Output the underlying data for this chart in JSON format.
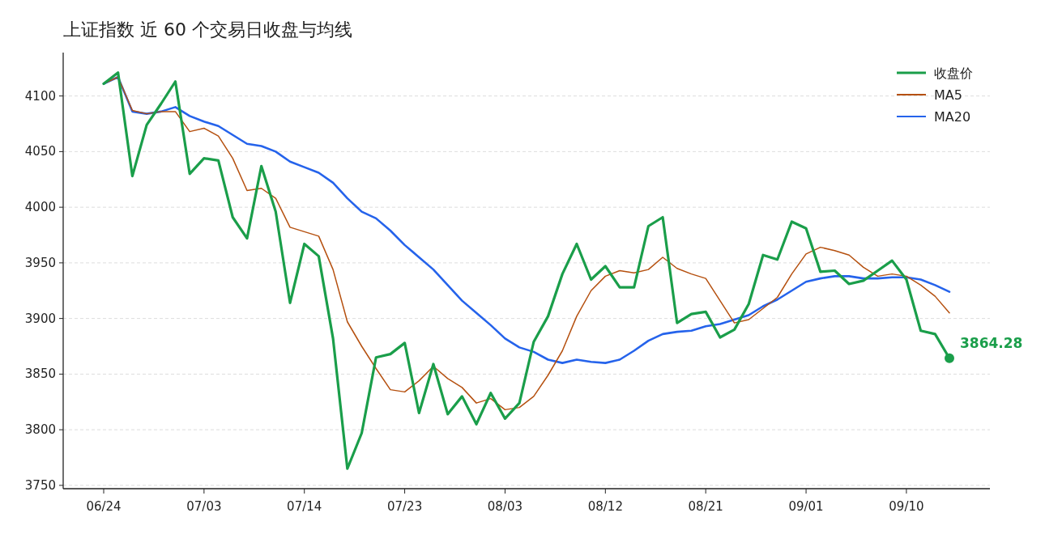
{
  "chart_data": {
    "type": "line",
    "title": "上证指数 近 60 个交易日收盘与均线",
    "categories": [
      "06/24",
      null,
      null,
      null,
      null,
      null,
      null,
      "07/03",
      null,
      null,
      null,
      null,
      null,
      null,
      "07/14",
      null,
      null,
      null,
      null,
      null,
      null,
      "07/23",
      null,
      null,
      null,
      null,
      null,
      null,
      "08/03",
      null,
      null,
      null,
      null,
      null,
      null,
      "08/12",
      null,
      null,
      null,
      null,
      null,
      null,
      "08/21",
      null,
      null,
      null,
      null,
      null,
      null,
      "09/01",
      null,
      null,
      null,
      null,
      null,
      null,
      "09/10",
      null,
      null,
      null
    ],
    "series": [
      {
        "name": "收盘价",
        "color": "#1a9e4a",
        "values": [
          4111,
          4121,
          4028,
          4074,
          4093,
          4113,
          4030,
          4044,
          4042,
          3991,
          3972,
          4037,
          3996,
          3914,
          3967,
          3956,
          3882,
          3765,
          3797,
          3865,
          3868,
          3878,
          3815,
          3859,
          3814,
          3830,
          3805,
          3833,
          3810,
          3824,
          3879,
          3902,
          3940,
          3967,
          3935,
          3947,
          3928,
          3928,
          3983,
          3991,
          3896,
          3904,
          3906,
          3883,
          3890,
          3913,
          3957,
          3953,
          3987,
          3981,
          3942,
          3943,
          3931,
          3934,
          3943,
          3952,
          3935,
          3889,
          3886,
          3864.28
        ],
        "value_labels": [
          null,
          null,
          null,
          null,
          null,
          null,
          null,
          null,
          null,
          null,
          null,
          null,
          null,
          null,
          null,
          null,
          null,
          null,
          null,
          null,
          null,
          null,
          null,
          null,
          null,
          null,
          null,
          null,
          null,
          null,
          null,
          null,
          null,
          null,
          null,
          null,
          null,
          null,
          null,
          null,
          null,
          null,
          null,
          null,
          null,
          null,
          null,
          null,
          null,
          null,
          null,
          null,
          null,
          null,
          null,
          null,
          null,
          null,
          null,
          "3864.28"
        ]
      },
      {
        "name": "MA5",
        "color": "#b5500f",
        "values": [
          4111,
          4117,
          4087,
          4084,
          4086,
          4086,
          4068,
          4071,
          4064,
          4044,
          4015,
          4017,
          4008,
          3982,
          3978,
          3974,
          3944,
          3897,
          3875,
          3855,
          3836,
          3834,
          3844,
          3857,
          3846,
          3838,
          3824,
          3828,
          3818,
          3820,
          3830,
          3849,
          3871,
          3902,
          3925,
          3938,
          3943,
          3941,
          3944,
          3955,
          3945,
          3940,
          3936,
          3916,
          3896,
          3899,
          3909,
          3919,
          3940,
          3958,
          3964,
          3961,
          3957,
          3946,
          3938,
          3940,
          3938,
          3930,
          3920,
          3905
        ]
      },
      {
        "name": "MA20",
        "color": "#2563eb",
        "values": [
          4111,
          4117,
          4086,
          4084,
          4086,
          4090,
          4082,
          4077,
          4073,
          4065,
          4057,
          4055,
          4050,
          4041,
          4036,
          4031,
          4022,
          4008,
          3996,
          3990,
          3979,
          3966,
          3955,
          3944,
          3930,
          3916,
          3905,
          3894,
          3882,
          3874,
          3870,
          3863,
          3860,
          3863,
          3861,
          3860,
          3863,
          3871,
          3880,
          3886,
          3888,
          3889,
          3893,
          3895,
          3899,
          3903,
          3911,
          3917,
          3925,
          3933,
          3936,
          3938,
          3938,
          3936,
          3936,
          3937,
          3937,
          3935,
          3930,
          3924
        ]
      }
    ],
    "ylim": [
      3747,
      4139
    ],
    "yticks": [
      3750,
      3800,
      3850,
      3900,
      3950,
      4000,
      4050,
      4100
    ],
    "grid": "y",
    "legend": "top right"
  }
}
